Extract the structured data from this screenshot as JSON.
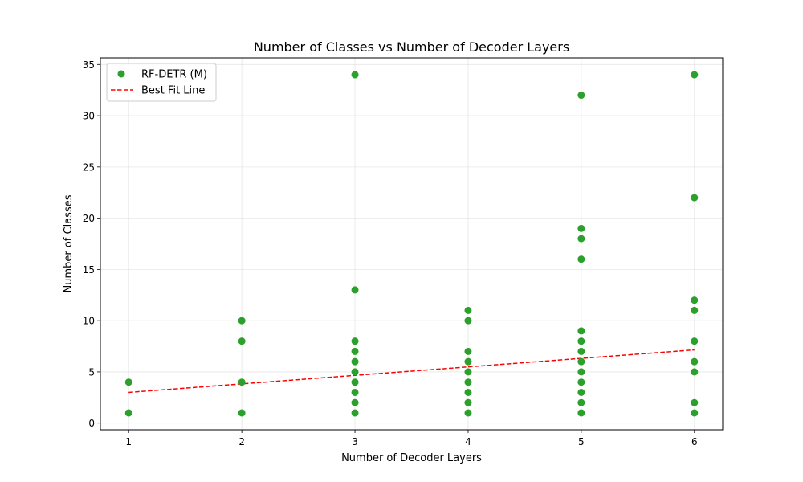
{
  "chart_data": {
    "type": "scatter",
    "title": "Number of Classes vs Number of Decoder Layers",
    "xlabel": "Number of Decoder Layers",
    "ylabel": "Number of Classes",
    "xlim": [
      0.75,
      6.25
    ],
    "ylim": [
      -0.65,
      35.65
    ],
    "xticks": [
      1,
      2,
      3,
      4,
      5,
      6
    ],
    "yticks": [
      0,
      5,
      10,
      15,
      20,
      25,
      30,
      35
    ],
    "grid": true,
    "legend_position": "top-left",
    "series": [
      {
        "name": "RF-DETR (M)",
        "kind": "scatter",
        "color": "#2ca02c",
        "points": [
          [
            1,
            1
          ],
          [
            1,
            4
          ],
          [
            2,
            1
          ],
          [
            2,
            4
          ],
          [
            2,
            8
          ],
          [
            2,
            10
          ],
          [
            3,
            1
          ],
          [
            3,
            2
          ],
          [
            3,
            3
          ],
          [
            3,
            4
          ],
          [
            3,
            5
          ],
          [
            3,
            6
          ],
          [
            3,
            7
          ],
          [
            3,
            8
          ],
          [
            3,
            13
          ],
          [
            3,
            34
          ],
          [
            4,
            1
          ],
          [
            4,
            2
          ],
          [
            4,
            3
          ],
          [
            4,
            4
          ],
          [
            4,
            5
          ],
          [
            4,
            6
          ],
          [
            4,
            7
          ],
          [
            4,
            10
          ],
          [
            4,
            11
          ],
          [
            5,
            1
          ],
          [
            5,
            2
          ],
          [
            5,
            3
          ],
          [
            5,
            4
          ],
          [
            5,
            5
          ],
          [
            5,
            6
          ],
          [
            5,
            7
          ],
          [
            5,
            8
          ],
          [
            5,
            9
          ],
          [
            5,
            16
          ],
          [
            5,
            18
          ],
          [
            5,
            19
          ],
          [
            5,
            32
          ],
          [
            6,
            1
          ],
          [
            6,
            2
          ],
          [
            6,
            5
          ],
          [
            6,
            6
          ],
          [
            6,
            8
          ],
          [
            6,
            11
          ],
          [
            6,
            12
          ],
          [
            6,
            22
          ],
          [
            6,
            34
          ]
        ]
      },
      {
        "name": "Best Fit Line",
        "kind": "line",
        "style": "dashed",
        "color": "#ff0000",
        "x": [
          1,
          6
        ],
        "y": [
          3.0,
          7.15
        ]
      }
    ]
  }
}
